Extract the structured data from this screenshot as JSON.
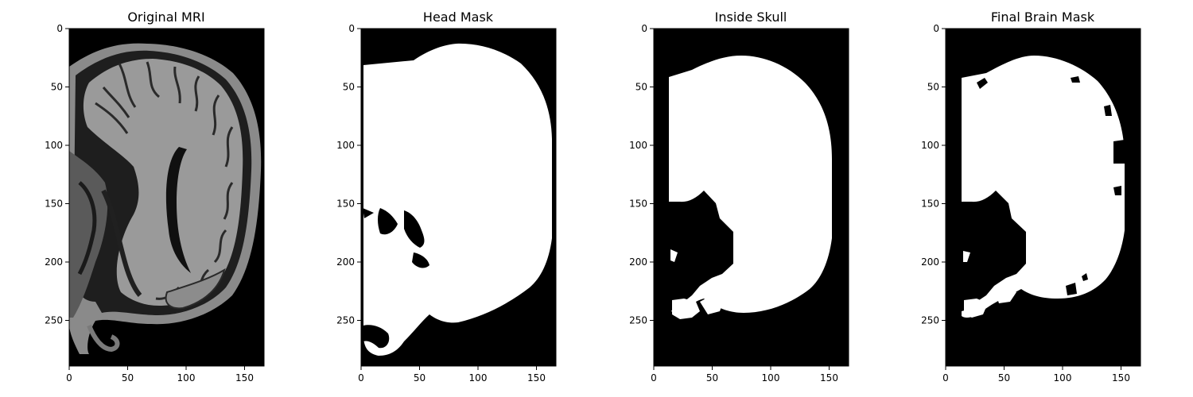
{
  "figure": {
    "panels": [
      {
        "title": "Original MRI"
      },
      {
        "title": "Head Mask"
      },
      {
        "title": "Inside Skull"
      },
      {
        "title": "Final Brain Mask"
      }
    ],
    "x_ticks": [
      "0",
      "50",
      "100",
      "150"
    ],
    "y_ticks": [
      "0",
      "50",
      "100",
      "150",
      "200",
      "250"
    ]
  }
}
